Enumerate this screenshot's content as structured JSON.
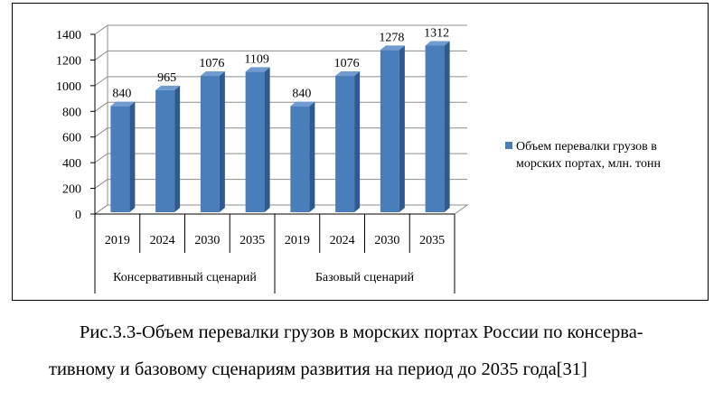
{
  "chart_data": {
    "type": "bar",
    "groups": [
      {
        "label": "Консервативный сценарий",
        "categories": [
          "2019",
          "2024",
          "2030",
          "2035"
        ]
      },
      {
        "label": "Базовый сценарий",
        "categories": [
          "2019",
          "2024",
          "2030",
          "2035"
        ]
      }
    ],
    "series": [
      {
        "name": "Объем перевалки грузов в морских портах, млн. тонн",
        "values": [
          840,
          965,
          1076,
          1109,
          840,
          1076,
          1278,
          1312
        ]
      }
    ],
    "data_labels": [
      "840",
      "965",
      "1076",
      "1109",
      "840",
      "1076",
      "1278",
      "1312"
    ],
    "yticks": [
      "0",
      "200",
      "400",
      "600",
      "800",
      "1000",
      "1200",
      "1400"
    ],
    "ylim": [
      0,
      1400
    ],
    "grid": "horizontal",
    "legend_position": "right",
    "legend_lines": [
      "Объем перевалки грузов в",
      "морских портах, млн. тонн"
    ],
    "bar_color": "#4a7ebb",
    "bar_side_color": "#2e5a8f",
    "bar_top_color": "#6f9bd0"
  },
  "caption": {
    "line1": "Рис.3.3-Объем перевалки грузов в морских портах России по консерва-",
    "line2": "тивному и базовому сценариям развития на период до 2035 года[31]"
  }
}
